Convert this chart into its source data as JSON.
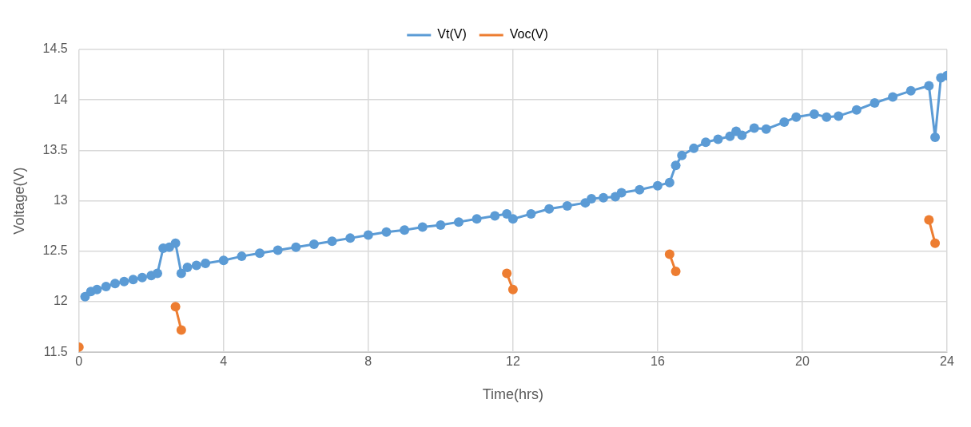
{
  "chart_data": {
    "type": "line",
    "xlabel": "Time(hrs)",
    "ylabel": "Voltage(V)",
    "xlim": [
      0,
      24
    ],
    "xticks": [
      0,
      4,
      8,
      12,
      16,
      20,
      24
    ],
    "ylim": [
      11.5,
      14.5
    ],
    "yticks": [
      11.5,
      12,
      12.5,
      13,
      13.5,
      14,
      14.5
    ],
    "grid": true,
    "legend": "top",
    "marker": "circle",
    "line_style": "solid",
    "series": [
      {
        "name": "Vt(V)",
        "color": "#5b9bd5",
        "x": [
          0.17,
          0.33,
          0.5,
          0.75,
          1,
          1.25,
          1.5,
          1.75,
          2,
          2.17,
          2.33,
          2.5,
          2.67,
          2.83,
          3,
          3.25,
          3.5,
          4,
          4.5,
          5,
          5.5,
          6,
          6.5,
          7,
          7.5,
          8,
          8.5,
          9,
          9.5,
          10,
          10.5,
          11,
          11.5,
          11.83,
          12,
          12.5,
          13,
          13.5,
          14,
          14.17,
          14.5,
          14.83,
          15,
          15.5,
          16,
          16.33,
          16.5,
          16.67,
          17,
          17.33,
          17.67,
          18,
          18.17,
          18.33,
          18.67,
          19,
          19.5,
          19.83,
          20.33,
          20.67,
          21,
          21.5,
          22,
          22.5,
          23,
          23.5,
          23.67,
          23.83,
          24
        ],
        "values": [
          12.05,
          12.1,
          12.12,
          12.15,
          12.18,
          12.2,
          12.22,
          12.24,
          12.26,
          12.28,
          12.53,
          12.54,
          12.58,
          12.28,
          12.34,
          12.36,
          12.38,
          12.41,
          12.45,
          12.48,
          12.51,
          12.54,
          12.57,
          12.6,
          12.63,
          12.66,
          12.69,
          12.71,
          12.74,
          12.76,
          12.79,
          12.82,
          12.85,
          12.87,
          12.82,
          12.87,
          12.92,
          12.95,
          12.98,
          13.02,
          13.03,
          13.04,
          13.08,
          13.11,
          13.15,
          13.18,
          13.35,
          13.45,
          13.52,
          13.58,
          13.61,
          13.64,
          13.69,
          13.65,
          13.72,
          13.71,
          13.78,
          13.83,
          13.86,
          13.83,
          13.84,
          13.9,
          13.97,
          14.03,
          14.09,
          14.14,
          13.63,
          14.22,
          14.24
        ]
      },
      {
        "name": "Voc(V)",
        "color": "#ed7d31",
        "x": [
          0,
          1.3,
          2.67,
          2.83,
          7,
          11.83,
          12,
          14,
          16.33,
          16.5,
          20,
          23.5,
          23.67
        ],
        "values": [
          11.55,
          null,
          11.95,
          11.72,
          null,
          12.28,
          12.12,
          null,
          12.47,
          12.3,
          null,
          12.81,
          12.58
        ]
      }
    ]
  }
}
